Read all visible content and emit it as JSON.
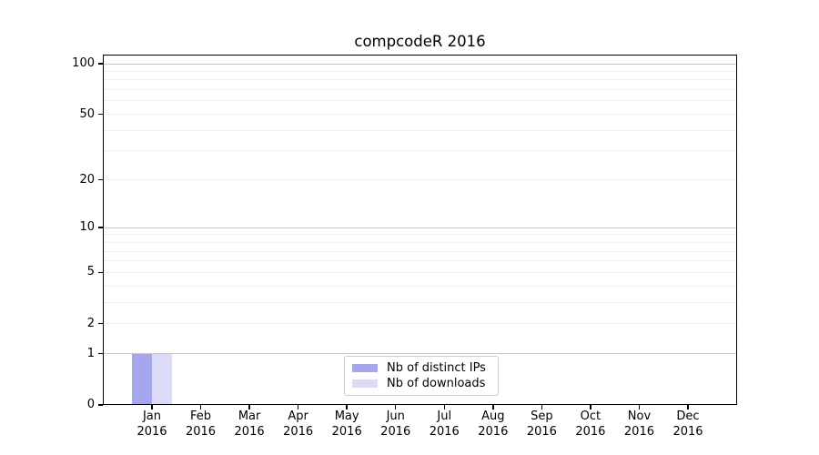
{
  "chart_data": {
    "type": "bar",
    "title": "compcodeR 2016",
    "categories": [
      "Jan",
      "Feb",
      "Mar",
      "Apr",
      "May",
      "Jun",
      "Jul",
      "Aug",
      "Sep",
      "Oct",
      "Nov",
      "Dec"
    ],
    "year_label": "2016",
    "series": [
      {
        "name": "Nb of distinct IPs",
        "color": "#a6a6ef",
        "values": [
          1,
          0,
          0,
          0,
          0,
          0,
          0,
          0,
          0,
          0,
          0,
          0
        ]
      },
      {
        "name": "Nb of downloads",
        "color": "#dbdbf8",
        "values": [
          1,
          0,
          0,
          0,
          0,
          0,
          0,
          0,
          0,
          0,
          0,
          0
        ]
      }
    ],
    "y_axis": {
      "scale": "log1p",
      "tick_values": [
        0,
        1,
        2,
        5,
        10,
        20,
        50,
        100
      ],
      "major_grid_values": [
        1,
        10,
        100
      ],
      "minor_grid_values": [
        2,
        3,
        4,
        5,
        6,
        7,
        8,
        9,
        20,
        30,
        40,
        50,
        60,
        70,
        80,
        90
      ],
      "ylim": [
        0,
        113
      ]
    },
    "x_axis": {
      "tick_count": 12
    },
    "legend_position": "bottom-center",
    "grid": true
  },
  "colors": {
    "background": "#ffffff",
    "spine": "#000000",
    "major_grid": "#c8c8c8",
    "minor_grid": "#efefef",
    "legend_border": "#cccccc",
    "bar_distinct_ips": "#a6a6ef",
    "bar_downloads": "#dbdbf8"
  }
}
